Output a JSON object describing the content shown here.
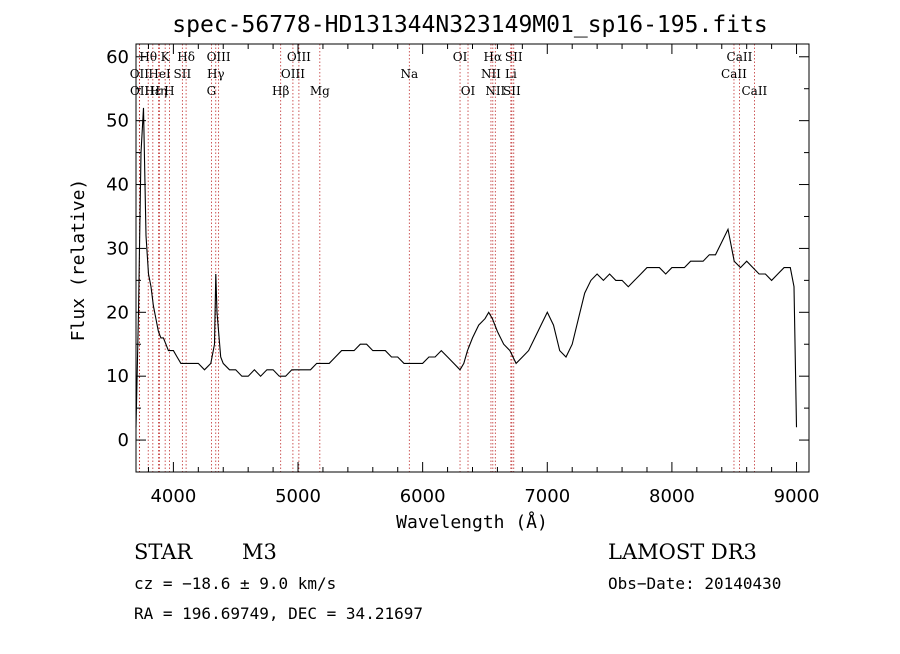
{
  "chart_data": {
    "type": "line",
    "title": "spec-56778-HD131344N323149M01_sp16-195.fits",
    "xlabel": "Wavelength (Å)",
    "ylabel": "Flux (relative)",
    "xlim": [
      3700,
      9100
    ],
    "ylim": [
      -5,
      62
    ],
    "x_ticks": [
      4000,
      5000,
      6000,
      7000,
      8000,
      9000
    ],
    "y_ticks": [
      0,
      10,
      20,
      30,
      40,
      50,
      60
    ],
    "x_tick_labels": [
      "4000",
      "5000",
      "6000",
      "7000",
      "8000",
      "9000"
    ],
    "y_tick_labels": [
      "0",
      "10",
      "20",
      "30",
      "40",
      "50",
      "60"
    ],
    "series": [
      {
        "name": "flux",
        "x": [
          3700,
          3720,
          3740,
          3760,
          3780,
          3800,
          3820,
          3840,
          3860,
          3880,
          3900,
          3920,
          3940,
          3960,
          3980,
          4000,
          4030,
          4060,
          4100,
          4150,
          4200,
          4250,
          4300,
          4330,
          4340,
          4350,
          4380,
          4400,
          4450,
          4500,
          4550,
          4600,
          4650,
          4700,
          4750,
          4800,
          4850,
          4900,
          4950,
          5000,
          5050,
          5100,
          5150,
          5200,
          5250,
          5300,
          5350,
          5400,
          5450,
          5500,
          5550,
          5600,
          5650,
          5700,
          5750,
          5800,
          5850,
          5900,
          5950,
          6000,
          6050,
          6100,
          6150,
          6200,
          6250,
          6300,
          6330,
          6360,
          6400,
          6450,
          6500,
          6530,
          6560,
          6600,
          6650,
          6700,
          6750,
          6800,
          6850,
          6900,
          6950,
          7000,
          7050,
          7100,
          7150,
          7200,
          7250,
          7300,
          7350,
          7400,
          7450,
          7500,
          7550,
          7600,
          7650,
          7700,
          7750,
          7800,
          7850,
          7900,
          7950,
          8000,
          8050,
          8100,
          8150,
          8200,
          8250,
          8300,
          8350,
          8400,
          8450,
          8500,
          8550,
          8600,
          8650,
          8700,
          8750,
          8800,
          8850,
          8900,
          8950,
          8980,
          9000
        ],
        "values": [
          2,
          20,
          45,
          52,
          32,
          26,
          24,
          21,
          19,
          17,
          16,
          16,
          15,
          14,
          14,
          14,
          13,
          12,
          12,
          12,
          12,
          11,
          12,
          15,
          26,
          20,
          13,
          12,
          11,
          11,
          10,
          10,
          11,
          10,
          11,
          11,
          10,
          10,
          11,
          11,
          11,
          11,
          12,
          12,
          12,
          13,
          14,
          14,
          14,
          15,
          15,
          14,
          14,
          14,
          13,
          13,
          12,
          12,
          12,
          12,
          13,
          13,
          14,
          13,
          12,
          11,
          12,
          14,
          16,
          18,
          19,
          20,
          19,
          17,
          15,
          14,
          12,
          13,
          14,
          16,
          18,
          20,
          18,
          14,
          13,
          15,
          19,
          23,
          25,
          26,
          25,
          26,
          25,
          25,
          24,
          25,
          26,
          27,
          27,
          27,
          26,
          27,
          27,
          27,
          28,
          28,
          28,
          29,
          29,
          31,
          33,
          28,
          27,
          28,
          27,
          26,
          26,
          25,
          26,
          27,
          27,
          24,
          2
        ]
      }
    ],
    "spectral_lines": [
      {
        "label": "Hθ",
        "x": 3798,
        "row": 0
      },
      {
        "label": "K",
        "x": 3934,
        "row": 0
      },
      {
        "label": "Hδ",
        "x": 4102,
        "row": 0
      },
      {
        "label": "OIII",
        "x": 4363,
        "row": 0
      },
      {
        "label": "OIII",
        "x": 5007,
        "row": 0
      },
      {
        "label": "OI",
        "x": 6300,
        "row": 0
      },
      {
        "label": "Hα",
        "x": 6563,
        "row": 0
      },
      {
        "label": "SII",
        "x": 6731,
        "row": 0
      },
      {
        "label": "CaII",
        "x": 8542,
        "row": 0
      },
      {
        "label": "OII",
        "x": 3727,
        "row": 1
      },
      {
        "label": "HeI",
        "x": 3889,
        "row": 1
      },
      {
        "label": "SII",
        "x": 4072,
        "row": 1
      },
      {
        "label": "Hγ",
        "x": 4340,
        "row": 1
      },
      {
        "label": "OIII",
        "x": 4959,
        "row": 1
      },
      {
        "label": "Na",
        "x": 5893,
        "row": 1
      },
      {
        "label": "NII",
        "x": 6548,
        "row": 1
      },
      {
        "label": "Li",
        "x": 6708,
        "row": 1
      },
      {
        "label": "CaII",
        "x": 8498,
        "row": 1
      },
      {
        "label": "OII",
        "x": 3729,
        "row": 2
      },
      {
        "label": "Hε",
        "x": 3835,
        "row": 2
      },
      {
        "label": "Hη",
        "x": 3880,
        "row": 2
      },
      {
        "label": "H",
        "x": 3968,
        "row": 2
      },
      {
        "label": "G",
        "x": 4305,
        "row": 2
      },
      {
        "label": "Hβ",
        "x": 4861,
        "row": 2
      },
      {
        "label": "Mg",
        "x": 5175,
        "row": 2
      },
      {
        "label": "OI",
        "x": 6364,
        "row": 2
      },
      {
        "label": "NII",
        "x": 6583,
        "row": 2
      },
      {
        "label": "SII",
        "x": 6716,
        "row": 2
      },
      {
        "label": "CaII",
        "x": 8662,
        "row": 2
      }
    ]
  },
  "info": {
    "object_class": "STAR",
    "subclass": "M3",
    "survey": "LAMOST DR3",
    "cz": "cz = −18.6 ± 9.0 km/s",
    "obs_date": "Obs−Date: 20140430",
    "coords": "RA = 196.69749, DEC =  34.21697"
  },
  "colors": {
    "line_markers": "#c03030",
    "spectrum": "#000000",
    "axes": "#000000"
  }
}
